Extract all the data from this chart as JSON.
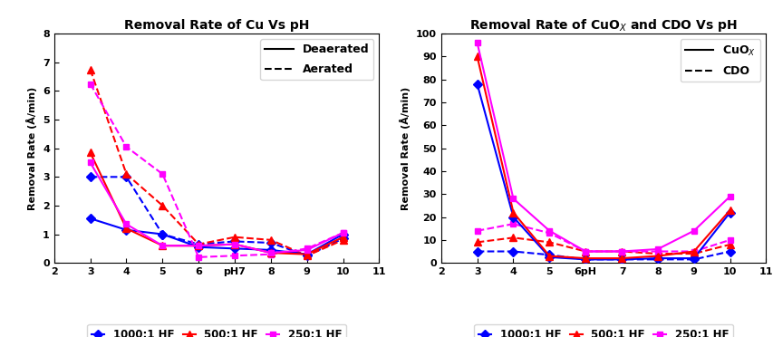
{
  "left_title": "Removal Rate of Cu Vs pH",
  "right_title": "Removal Rate of CuO$_X$ and CDO Vs pH",
  "ylabel": "Removal Rate (Å/min)",
  "colors": {
    "1000": "#0000FF",
    "500": "#FF0000",
    "250": "#FF00FF"
  },
  "left": {
    "x": [
      3,
      4,
      5,
      6,
      7,
      8,
      9,
      10
    ],
    "deaerated_1000": [
      1.55,
      1.15,
      1.0,
      0.55,
      0.5,
      0.45,
      0.3,
      1.0
    ],
    "deaerated_500": [
      3.85,
      1.2,
      0.6,
      0.6,
      0.65,
      0.35,
      0.3,
      0.9
    ],
    "deaerated_250": [
      3.5,
      1.35,
      0.6,
      0.6,
      0.65,
      0.35,
      0.45,
      1.05
    ],
    "aerated_1000": [
      3.0,
      3.0,
      1.0,
      0.65,
      0.75,
      0.7,
      0.25,
      0.85
    ],
    "aerated_500": [
      6.75,
      3.1,
      2.0,
      0.65,
      0.9,
      0.8,
      0.25,
      0.8
    ],
    "aerated_250": [
      6.25,
      4.05,
      3.1,
      0.2,
      0.25,
      0.3,
      0.5,
      1.05
    ],
    "ylim": [
      0,
      8
    ],
    "yticks": [
      0,
      1,
      2,
      3,
      4,
      5,
      6,
      7,
      8
    ],
    "left_legend_label1": "Deaerated",
    "left_legend_label2": "Aerated"
  },
  "right": {
    "x": [
      3,
      4,
      5,
      6,
      7,
      8,
      9,
      10
    ],
    "cuox_1000": [
      78,
      20,
      2.5,
      1.5,
      1.5,
      2.0,
      2.0,
      22
    ],
    "cuox_500": [
      90,
      22,
      3.0,
      2.0,
      2.0,
      3.0,
      5.0,
      23
    ],
    "cuox_250": [
      96,
      28,
      14,
      5.0,
      5.0,
      6.0,
      14,
      29
    ],
    "cdo_1000": [
      5,
      5,
      3.5,
      1.5,
      1.5,
      1.5,
      1.5,
      5
    ],
    "cdo_500": [
      9,
      11,
      9,
      5,
      5,
      4,
      4,
      8
    ],
    "cdo_250": [
      14,
      17,
      13,
      5,
      5,
      5,
      5,
      10
    ],
    "ylim": [
      0,
      100
    ],
    "yticks": [
      0,
      10,
      20,
      30,
      40,
      50,
      60,
      70,
      80,
      90,
      100
    ],
    "right_legend_label1": "CuO$_X$",
    "right_legend_label2": "CDO"
  },
  "xlim": [
    2,
    11
  ],
  "left_xtick_labels": [
    "2",
    "3",
    "4",
    "5",
    "6",
    "pH7",
    "8",
    "9",
    "10",
    "11"
  ],
  "right_xtick_labels": [
    "2",
    "3",
    "4",
    "5",
    "6pH",
    " 7",
    "8",
    "9",
    "10",
    "11"
  ],
  "xticks": [
    2,
    3,
    4,
    5,
    6,
    7,
    8,
    9,
    10,
    11
  ],
  "bottom_legend_labels": [
    "1000:1 HF",
    "500:1 HF",
    "250:1 HF"
  ]
}
